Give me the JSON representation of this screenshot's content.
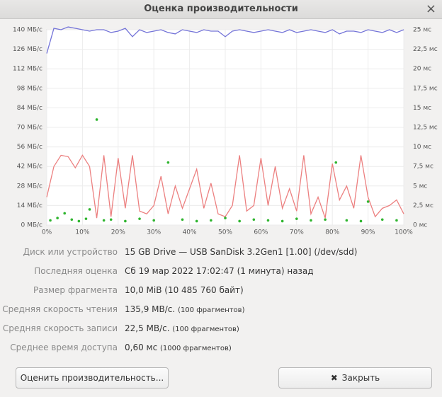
{
  "window": {
    "title": "Оценка производительности",
    "close": "×"
  },
  "chart_data": {
    "type": "line",
    "xlim": [
      0,
      100
    ],
    "xticks": [
      {
        "value": 0,
        "label": "0%"
      },
      {
        "value": 10,
        "label": "10%"
      },
      {
        "value": 20,
        "label": "20%"
      },
      {
        "value": 30,
        "label": "30%"
      },
      {
        "value": 40,
        "label": "40%"
      },
      {
        "value": 50,
        "label": "50%"
      },
      {
        "value": 60,
        "label": "60%"
      },
      {
        "value": 70,
        "label": "70%"
      },
      {
        "value": 80,
        "label": "80%"
      },
      {
        "value": 90,
        "label": "90%"
      },
      {
        "value": 100,
        "label": "100%"
      }
    ],
    "ylim": [
      0,
      140
    ],
    "yticks": [
      {
        "value": 0,
        "label": "0 МБ/с"
      },
      {
        "value": 14,
        "label": "14 МБ/с"
      },
      {
        "value": 28,
        "label": "28 МБ/с"
      },
      {
        "value": 42,
        "label": "42 МБ/с"
      },
      {
        "value": 56,
        "label": "56 МБ/с"
      },
      {
        "value": 70,
        "label": "70 МБ/с"
      },
      {
        "value": 84,
        "label": "84 МБ/с"
      },
      {
        "value": 98,
        "label": "98 МБ/с"
      },
      {
        "value": 112,
        "label": "112 МБ/с"
      },
      {
        "value": 126,
        "label": "126 МБ/с"
      },
      {
        "value": 140,
        "label": "140 МБ/с"
      }
    ],
    "y2lim": [
      0,
      25
    ],
    "y2ticks": [
      {
        "value": 0,
        "label": "0 мс"
      },
      {
        "value": 2.5,
        "label": "2,5 мс"
      },
      {
        "value": 5,
        "label": "5 мс"
      },
      {
        "value": 7.5,
        "label": "7,5 мс"
      },
      {
        "value": 10,
        "label": "10 мс"
      },
      {
        "value": 12.5,
        "label": "12,5 мс"
      },
      {
        "value": 15,
        "label": "15 мс"
      },
      {
        "value": 17.5,
        "label": "17,5 мс"
      },
      {
        "value": 20,
        "label": "20 мс"
      },
      {
        "value": 22.5,
        "label": "22,5 мс"
      },
      {
        "value": 25,
        "label": "25 мс"
      }
    ],
    "grid": true,
    "series": [
      {
        "type": "line",
        "color": "#7474d8",
        "x": [
          0,
          2,
          4,
          6,
          8,
          10,
          12,
          14,
          16,
          18,
          20,
          22,
          24,
          26,
          28,
          30,
          32,
          34,
          36,
          38,
          40,
          42,
          44,
          46,
          48,
          50,
          52,
          54,
          56,
          58,
          60,
          62,
          64,
          66,
          68,
          70,
          72,
          74,
          76,
          78,
          80,
          82,
          84,
          86,
          88,
          90,
          92,
          94,
          96,
          98,
          100
        ],
        "values": [
          123,
          141,
          140,
          142,
          141,
          140,
          139,
          140,
          140,
          138,
          139,
          141,
          135,
          140,
          138,
          139,
          140,
          138,
          137,
          140,
          139,
          138,
          140,
          139,
          139,
          135,
          139,
          140,
          139,
          138,
          139,
          140,
          139,
          138,
          140,
          138,
          139,
          140,
          139,
          138,
          140,
          137,
          139,
          139,
          138,
          140,
          139,
          138,
          140,
          138,
          140
        ]
      },
      {
        "type": "line",
        "color": "#ec8080",
        "x": [
          0,
          2,
          4,
          6,
          8,
          10,
          12,
          14,
          16,
          18,
          20,
          22,
          24,
          26,
          28,
          30,
          32,
          34,
          36,
          38,
          40,
          42,
          44,
          46,
          48,
          50,
          52,
          54,
          56,
          58,
          60,
          62,
          64,
          66,
          68,
          70,
          72,
          74,
          76,
          78,
          80,
          82,
          84,
          86,
          88,
          90,
          92,
          94,
          96,
          98,
          100
        ],
        "values": [
          20,
          42,
          50,
          49,
          41,
          50,
          42,
          5,
          50,
          6,
          48,
          12,
          50,
          10,
          8,
          14,
          35,
          8,
          28,
          12,
          26,
          40,
          12,
          30,
          8,
          6,
          14,
          50,
          10,
          14,
          48,
          14,
          42,
          12,
          26,
          10,
          50,
          8,
          20,
          5,
          44,
          18,
          28,
          12,
          50,
          20,
          6,
          12,
          14,
          18,
          8
        ]
      },
      {
        "type": "scatter",
        "color": "#2fb52f",
        "axis": "y2",
        "x": [
          1,
          3,
          5,
          7,
          9,
          11,
          12,
          14,
          16,
          18,
          22,
          26,
          30,
          34,
          38,
          42,
          46,
          50,
          54,
          58,
          62,
          66,
          70,
          74,
          78,
          81,
          84,
          88,
          90,
          94,
          98
        ],
        "values": [
          0.6,
          0.9,
          1.5,
          0.7,
          0.5,
          0.8,
          2,
          13.5,
          0.6,
          0.7,
          0.5,
          0.8,
          0.6,
          8,
          0.7,
          0.5,
          0.6,
          0.9,
          0.5,
          0.7,
          0.6,
          0.5,
          0.8,
          0.6,
          0.7,
          8,
          0.6,
          0.5,
          3,
          0.7,
          0.6
        ]
      }
    ]
  },
  "info": [
    {
      "label": "Диск или устройство",
      "value": "15 GB Drive — USB SanDisk 3.2Gen1 [1.00] (/dev/sdd)"
    },
    {
      "label": "Последняя оценка",
      "value": "Сб 19 мар 2022 17:02:47 (1 минута) назад"
    },
    {
      "label": "Размер фрагмента",
      "value": "10,0 MiB (10 485 760 байт)"
    },
    {
      "label": "Средняя скорость чтения",
      "value": "135,9 MB/с.",
      "note": "(100 фрагментов)"
    },
    {
      "label": "Средняя скорость записи",
      "value": "22,5 MB/с.",
      "note": "(100 фрагментов)"
    },
    {
      "label": "Среднее время доступа",
      "value": "0,60 мс",
      "note": "(1000 фрагментов)"
    }
  ],
  "buttons": {
    "benchmark": "Оценить производительность...",
    "close": "Закрыть"
  }
}
